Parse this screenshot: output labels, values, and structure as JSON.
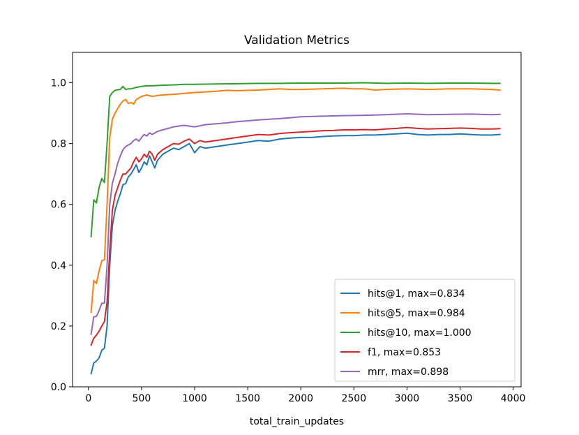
{
  "chart_data": {
    "type": "line",
    "title": "Validation Metrics",
    "xlabel": "total_train_updates",
    "ylabel": "",
    "xlim": [
      -150,
      4075
    ],
    "ylim": [
      0.0,
      1.1
    ],
    "xticks": [
      0,
      500,
      1000,
      1500,
      2000,
      2500,
      3000,
      3500,
      4000
    ],
    "xtick_labels": [
      "0",
      "500",
      "1000",
      "1500",
      "2000",
      "2500",
      "3000",
      "3500",
      "4000"
    ],
    "yticks": [
      0.0,
      0.2,
      0.4,
      0.6,
      0.8,
      1.0
    ],
    "ytick_labels": [
      "0.0",
      "0.2",
      "0.4",
      "0.6",
      "0.8",
      "1.0"
    ],
    "grid": false,
    "legend_position": "lower-right",
    "series": [
      {
        "name": "hits@1, max=0.834",
        "color": "#1f77b4",
        "points": [
          [
            25,
            0.043
          ],
          [
            50,
            0.078
          ],
          [
            75,
            0.085
          ],
          [
            100,
            0.095
          ],
          [
            125,
            0.12
          ],
          [
            150,
            0.127
          ],
          [
            175,
            0.2
          ],
          [
            200,
            0.4
          ],
          [
            225,
            0.53
          ],
          [
            250,
            0.58
          ],
          [
            275,
            0.61
          ],
          [
            300,
            0.635
          ],
          [
            325,
            0.665
          ],
          [
            350,
            0.668
          ],
          [
            375,
            0.69
          ],
          [
            400,
            0.7
          ],
          [
            425,
            0.715
          ],
          [
            450,
            0.73
          ],
          [
            475,
            0.705
          ],
          [
            500,
            0.72
          ],
          [
            525,
            0.74
          ],
          [
            550,
            0.73
          ],
          [
            575,
            0.76
          ],
          [
            600,
            0.74
          ],
          [
            625,
            0.72
          ],
          [
            650,
            0.745
          ],
          [
            700,
            0.765
          ],
          [
            750,
            0.775
          ],
          [
            800,
            0.785
          ],
          [
            850,
            0.78
          ],
          [
            900,
            0.79
          ],
          [
            950,
            0.8
          ],
          [
            1000,
            0.77
          ],
          [
            1050,
            0.79
          ],
          [
            1100,
            0.785
          ],
          [
            1200,
            0.79
          ],
          [
            1300,
            0.795
          ],
          [
            1400,
            0.8
          ],
          [
            1500,
            0.805
          ],
          [
            1600,
            0.81
          ],
          [
            1700,
            0.808
          ],
          [
            1800,
            0.815
          ],
          [
            1900,
            0.818
          ],
          [
            2000,
            0.82
          ],
          [
            2100,
            0.82
          ],
          [
            2200,
            0.823
          ],
          [
            2300,
            0.825
          ],
          [
            2400,
            0.826
          ],
          [
            2500,
            0.826
          ],
          [
            2600,
            0.828
          ],
          [
            2700,
            0.828
          ],
          [
            2800,
            0.83
          ],
          [
            2900,
            0.832
          ],
          [
            3000,
            0.834
          ],
          [
            3100,
            0.83
          ],
          [
            3200,
            0.828
          ],
          [
            3300,
            0.83
          ],
          [
            3400,
            0.83
          ],
          [
            3500,
            0.832
          ],
          [
            3600,
            0.83
          ],
          [
            3700,
            0.828
          ],
          [
            3800,
            0.828
          ],
          [
            3875,
            0.83
          ]
        ]
      },
      {
        "name": "hits@5, max=0.984",
        "color": "#ff7f0e",
        "points": [
          [
            25,
            0.245
          ],
          [
            50,
            0.35
          ],
          [
            75,
            0.34
          ],
          [
            100,
            0.38
          ],
          [
            125,
            0.415
          ],
          [
            150,
            0.418
          ],
          [
            175,
            0.6
          ],
          [
            200,
            0.82
          ],
          [
            225,
            0.88
          ],
          [
            250,
            0.9
          ],
          [
            275,
            0.915
          ],
          [
            300,
            0.93
          ],
          [
            325,
            0.94
          ],
          [
            350,
            0.945
          ],
          [
            375,
            0.932
          ],
          [
            400,
            0.935
          ],
          [
            425,
            0.93
          ],
          [
            450,
            0.945
          ],
          [
            475,
            0.95
          ],
          [
            500,
            0.955
          ],
          [
            550,
            0.96
          ],
          [
            600,
            0.955
          ],
          [
            650,
            0.958
          ],
          [
            700,
            0.96
          ],
          [
            800,
            0.962
          ],
          [
            900,
            0.965
          ],
          [
            1000,
            0.968
          ],
          [
            1100,
            0.97
          ],
          [
            1200,
            0.972
          ],
          [
            1300,
            0.975
          ],
          [
            1400,
            0.974
          ],
          [
            1500,
            0.975
          ],
          [
            1600,
            0.976
          ],
          [
            1700,
            0.978
          ],
          [
            1800,
            0.98
          ],
          [
            1900,
            0.978
          ],
          [
            2000,
            0.978
          ],
          [
            2200,
            0.98
          ],
          [
            2400,
            0.982
          ],
          [
            2500,
            0.98
          ],
          [
            2600,
            0.98
          ],
          [
            2700,
            0.976
          ],
          [
            2800,
            0.978
          ],
          [
            3000,
            0.98
          ],
          [
            3200,
            0.978
          ],
          [
            3400,
            0.98
          ],
          [
            3600,
            0.98
          ],
          [
            3800,
            0.978
          ],
          [
            3875,
            0.976
          ]
        ]
      },
      {
        "name": "hits@10, max=1.000",
        "color": "#2ca02c",
        "points": [
          [
            25,
            0.494
          ],
          [
            50,
            0.615
          ],
          [
            75,
            0.605
          ],
          [
            100,
            0.655
          ],
          [
            125,
            0.685
          ],
          [
            150,
            0.672
          ],
          [
            175,
            0.8
          ],
          [
            200,
            0.955
          ],
          [
            225,
            0.968
          ],
          [
            250,
            0.975
          ],
          [
            275,
            0.977
          ],
          [
            300,
            0.978
          ],
          [
            325,
            0.988
          ],
          [
            350,
            0.978
          ],
          [
            375,
            0.98
          ],
          [
            400,
            0.98
          ],
          [
            450,
            0.985
          ],
          [
            500,
            0.988
          ],
          [
            550,
            0.99
          ],
          [
            600,
            0.99
          ],
          [
            700,
            0.992
          ],
          [
            800,
            0.993
          ],
          [
            900,
            0.995
          ],
          [
            1000,
            0.995
          ],
          [
            1200,
            0.996
          ],
          [
            1400,
            0.997
          ],
          [
            1600,
            0.998
          ],
          [
            1800,
            0.998
          ],
          [
            2000,
            0.999
          ],
          [
            2200,
            0.999
          ],
          [
            2400,
            0.999
          ],
          [
            2600,
            1.0
          ],
          [
            2800,
            0.998
          ],
          [
            3000,
            0.999
          ],
          [
            3200,
            0.998
          ],
          [
            3400,
            0.999
          ],
          [
            3600,
            0.999
          ],
          [
            3800,
            0.998
          ],
          [
            3875,
            0.998
          ]
        ]
      },
      {
        "name": "f1, max=0.853",
        "color": "#d62728",
        "points": [
          [
            25,
            0.137
          ],
          [
            50,
            0.16
          ],
          [
            75,
            0.17
          ],
          [
            100,
            0.183
          ],
          [
            125,
            0.2
          ],
          [
            150,
            0.215
          ],
          [
            175,
            0.28
          ],
          [
            200,
            0.45
          ],
          [
            225,
            0.58
          ],
          [
            250,
            0.63
          ],
          [
            275,
            0.655
          ],
          [
            300,
            0.68
          ],
          [
            325,
            0.7
          ],
          [
            350,
            0.7
          ],
          [
            375,
            0.71
          ],
          [
            400,
            0.72
          ],
          [
            425,
            0.74
          ],
          [
            450,
            0.755
          ],
          [
            475,
            0.74
          ],
          [
            500,
            0.75
          ],
          [
            525,
            0.765
          ],
          [
            550,
            0.755
          ],
          [
            575,
            0.775
          ],
          [
            600,
            0.765
          ],
          [
            625,
            0.745
          ],
          [
            650,
            0.765
          ],
          [
            700,
            0.78
          ],
          [
            750,
            0.79
          ],
          [
            800,
            0.8
          ],
          [
            850,
            0.798
          ],
          [
            900,
            0.808
          ],
          [
            950,
            0.815
          ],
          [
            1000,
            0.8
          ],
          [
            1050,
            0.81
          ],
          [
            1100,
            0.805
          ],
          [
            1200,
            0.81
          ],
          [
            1300,
            0.815
          ],
          [
            1400,
            0.82
          ],
          [
            1500,
            0.825
          ],
          [
            1600,
            0.83
          ],
          [
            1700,
            0.828
          ],
          [
            1800,
            0.833
          ],
          [
            1900,
            0.836
          ],
          [
            2000,
            0.838
          ],
          [
            2100,
            0.84
          ],
          [
            2200,
            0.842
          ],
          [
            2300,
            0.843
          ],
          [
            2400,
            0.845
          ],
          [
            2500,
            0.845
          ],
          [
            2600,
            0.846
          ],
          [
            2700,
            0.845
          ],
          [
            2800,
            0.848
          ],
          [
            2900,
            0.85
          ],
          [
            3000,
            0.853
          ],
          [
            3100,
            0.85
          ],
          [
            3200,
            0.848
          ],
          [
            3300,
            0.849
          ],
          [
            3400,
            0.85
          ],
          [
            3500,
            0.851
          ],
          [
            3600,
            0.85
          ],
          [
            3700,
            0.848
          ],
          [
            3800,
            0.848
          ],
          [
            3875,
            0.849
          ]
        ]
      },
      {
        "name": "mrr, max=0.898",
        "color": "#9467bd",
        "points": [
          [
            25,
            0.173
          ],
          [
            50,
            0.23
          ],
          [
            75,
            0.232
          ],
          [
            100,
            0.25
          ],
          [
            125,
            0.275
          ],
          [
            150,
            0.275
          ],
          [
            175,
            0.4
          ],
          [
            200,
            0.6
          ],
          [
            225,
            0.67
          ],
          [
            250,
            0.7
          ],
          [
            275,
            0.735
          ],
          [
            300,
            0.76
          ],
          [
            325,
            0.78
          ],
          [
            350,
            0.79
          ],
          [
            375,
            0.795
          ],
          [
            400,
            0.8
          ],
          [
            425,
            0.81
          ],
          [
            450,
            0.815
          ],
          [
            475,
            0.808
          ],
          [
            500,
            0.82
          ],
          [
            525,
            0.83
          ],
          [
            550,
            0.825
          ],
          [
            575,
            0.835
          ],
          [
            600,
            0.83
          ],
          [
            650,
            0.84
          ],
          [
            700,
            0.845
          ],
          [
            750,
            0.85
          ],
          [
            800,
            0.855
          ],
          [
            900,
            0.86
          ],
          [
            1000,
            0.855
          ],
          [
            1100,
            0.862
          ],
          [
            1200,
            0.865
          ],
          [
            1300,
            0.868
          ],
          [
            1400,
            0.872
          ],
          [
            1500,
            0.875
          ],
          [
            1600,
            0.878
          ],
          [
            1700,
            0.88
          ],
          [
            1800,
            0.882
          ],
          [
            1900,
            0.885
          ],
          [
            2000,
            0.888
          ],
          [
            2200,
            0.89
          ],
          [
            2400,
            0.892
          ],
          [
            2600,
            0.893
          ],
          [
            2800,
            0.895
          ],
          [
            3000,
            0.898
          ],
          [
            3200,
            0.895
          ],
          [
            3400,
            0.896
          ],
          [
            3600,
            0.897
          ],
          [
            3800,
            0.895
          ],
          [
            3875,
            0.896
          ]
        ]
      }
    ]
  }
}
